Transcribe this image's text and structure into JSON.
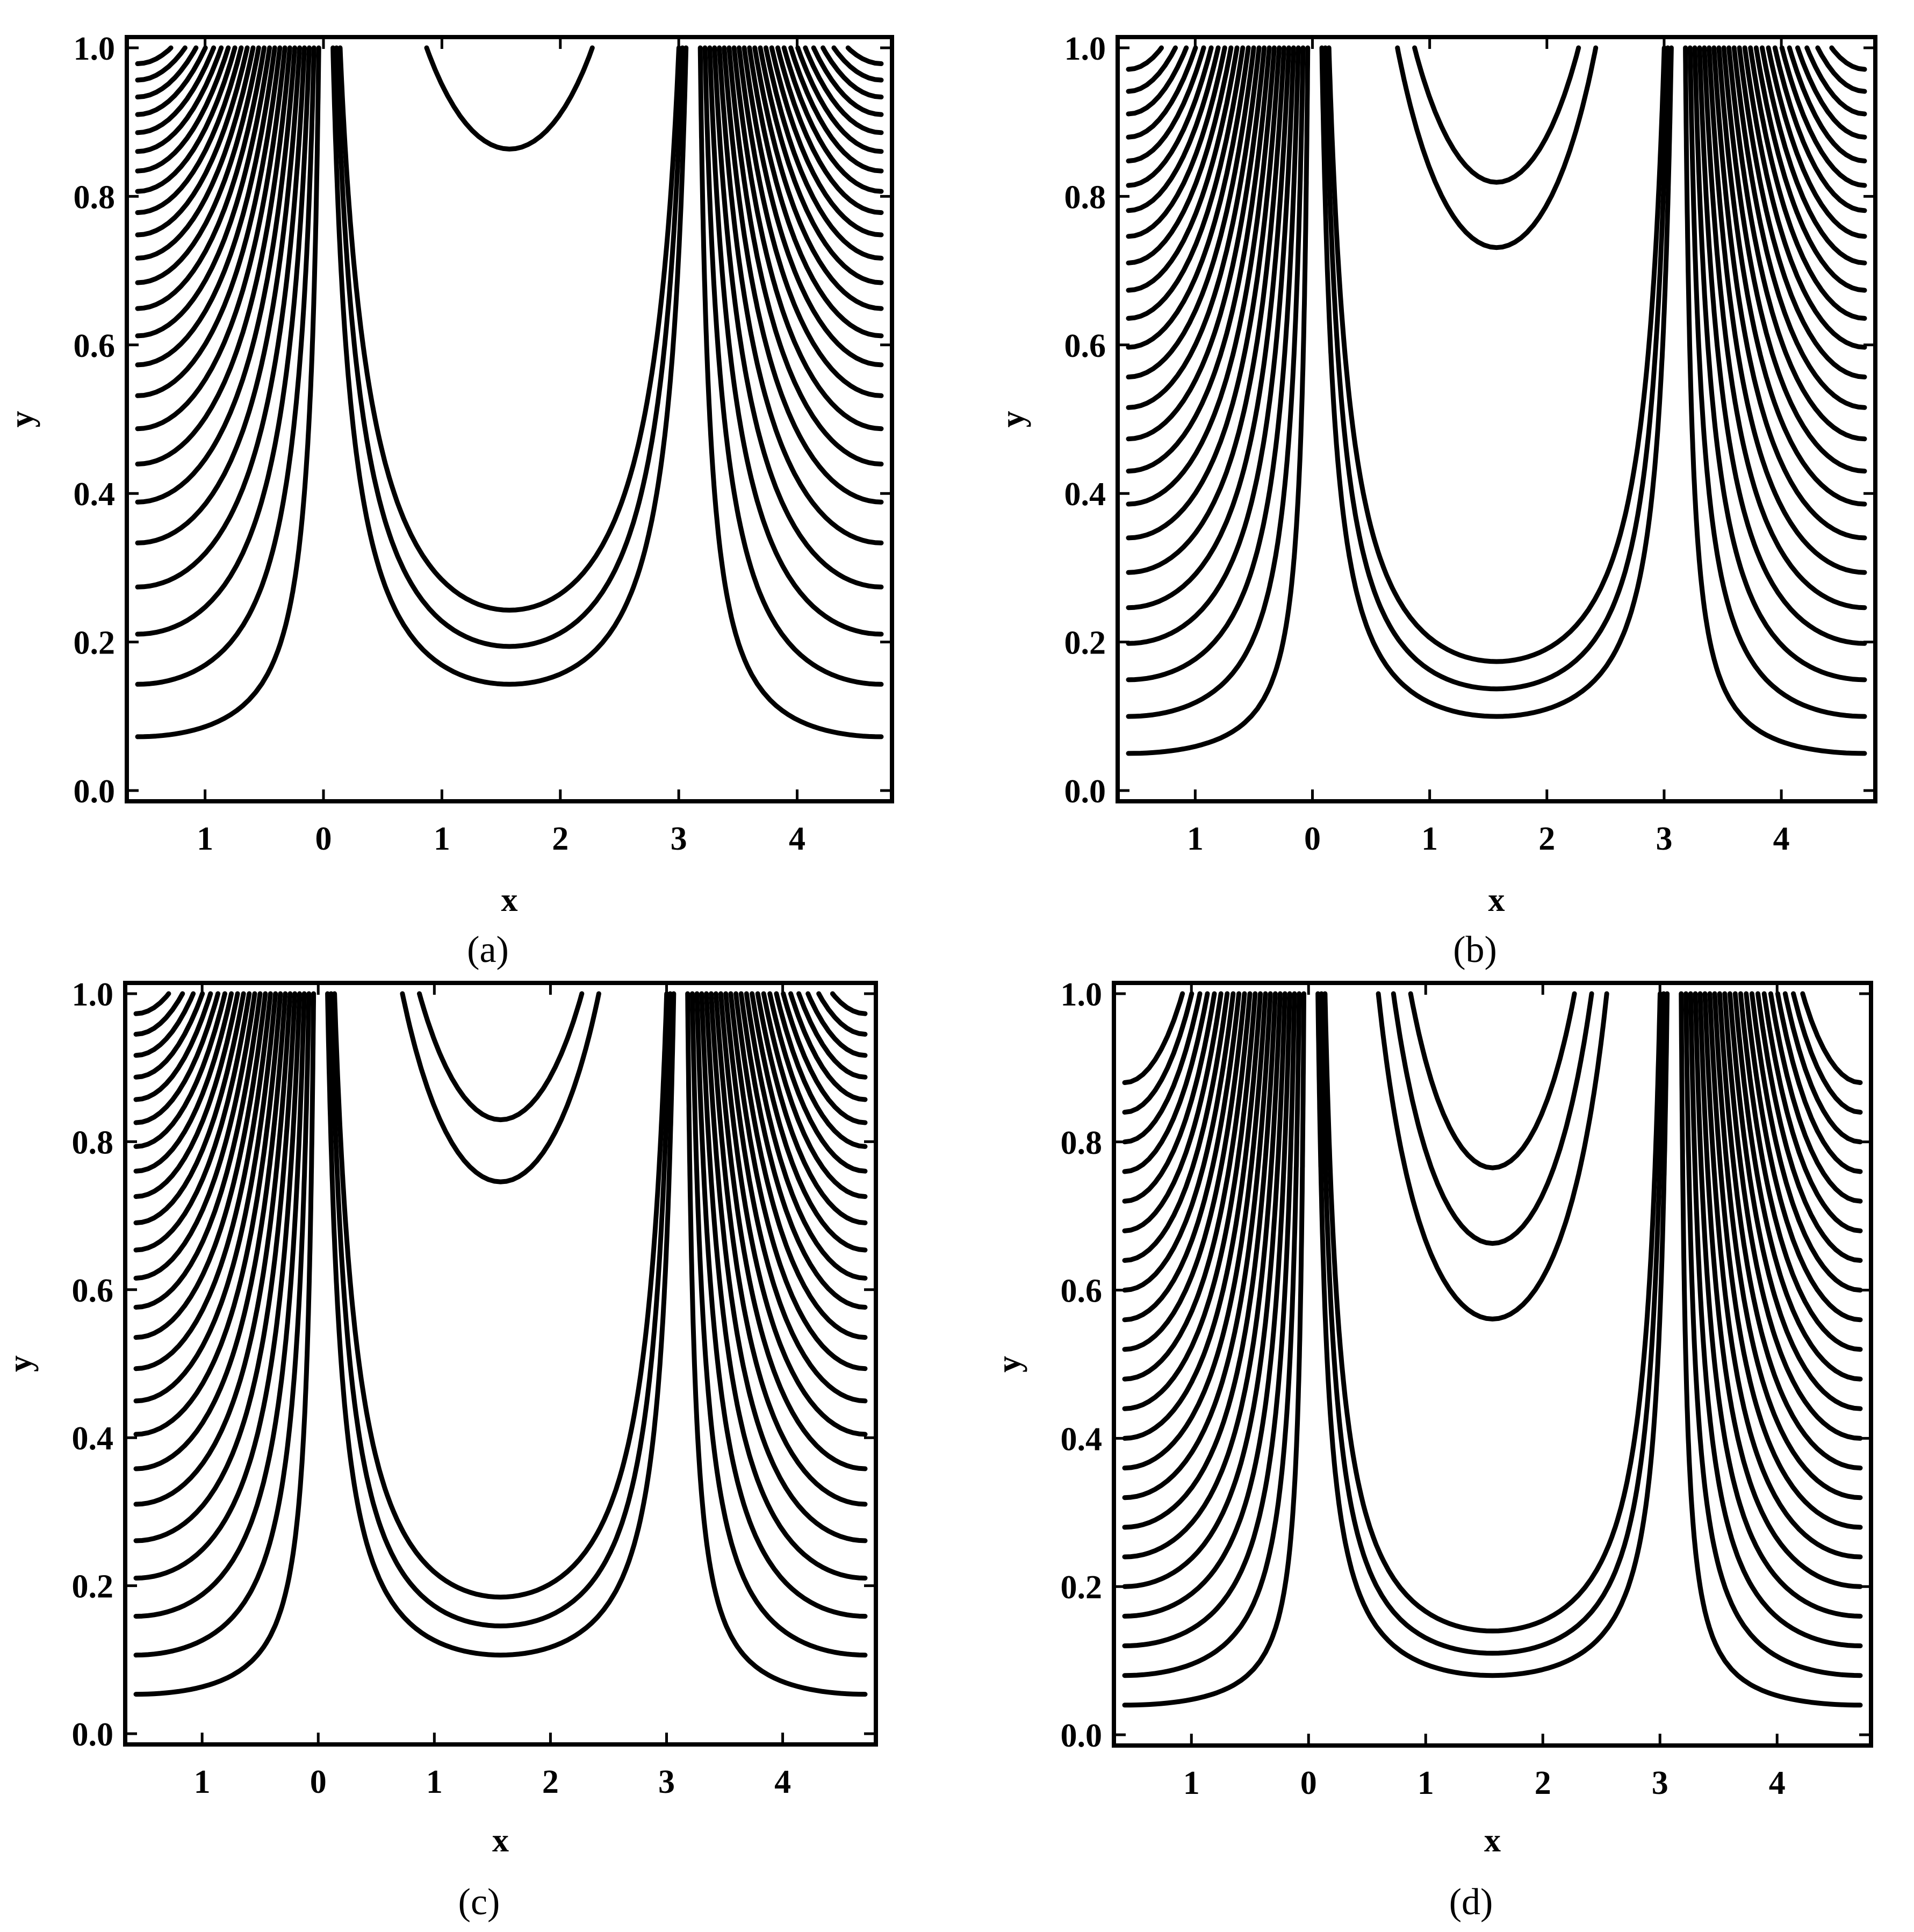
{
  "figure": {
    "panels": [
      {
        "caption": "(a)"
      },
      {
        "caption": "(b)"
      },
      {
        "caption": "(c)"
      },
      {
        "caption": "(d)"
      }
    ]
  },
  "chart_data": [
    {
      "type": "contour",
      "panel": "(a)",
      "xlabel": "x",
      "ylabel": "y",
      "xticks": [
        "1",
        "0",
        "1",
        "2",
        "3",
        "4"
      ],
      "xtick_values": [
        -1,
        0,
        1,
        2,
        3,
        4
      ],
      "yticks": [
        "0.0",
        "0.2",
        "0.4",
        "0.6",
        "0.8",
        "1.0"
      ],
      "ytick_values": [
        0.0,
        0.2,
        0.4,
        0.6,
        0.8,
        1.0
      ],
      "xlim": [
        -1.57,
        4.71
      ],
      "ylim": [
        0,
        1
      ],
      "color": "#000000",
      "closed_loop_min_y": [
        0.12
      ],
      "nested_loop_count": 1,
      "open_contour_count": 28
    },
    {
      "type": "contour",
      "panel": "(b)",
      "xlabel": "x",
      "ylabel": "y",
      "xticks": [
        "1",
        "0",
        "1",
        "2",
        "3",
        "4"
      ],
      "xtick_values": [
        -1,
        0,
        1,
        2,
        3,
        4
      ],
      "yticks": [
        "0.0",
        "0.2",
        "0.4",
        "0.6",
        "0.8",
        "1.0"
      ],
      "ytick_values": [
        0.0,
        0.2,
        0.4,
        0.6,
        0.8,
        1.0
      ],
      "xlim": [
        -1.57,
        4.71
      ],
      "ylim": [
        0,
        1
      ],
      "color": "#000000",
      "closed_loop_min_y": [
        0.2,
        0.1
      ],
      "nested_loop_count": 2,
      "open_contour_count": 28
    },
    {
      "type": "contour",
      "panel": "(c)",
      "xlabel": "x",
      "ylabel": "y",
      "xticks": [
        "1",
        "0",
        "1",
        "2",
        "3",
        "4"
      ],
      "xtick_values": [
        -1,
        0,
        1,
        2,
        3,
        4
      ],
      "yticks": [
        "0.0",
        "0.2",
        "0.4",
        "0.6",
        "0.8",
        "1.0"
      ],
      "ytick_values": [
        0.0,
        0.2,
        0.4,
        0.6,
        0.8,
        1.0
      ],
      "xlim": [
        -1.57,
        4.71
      ],
      "ylim": [
        0,
        1
      ],
      "color": "#000000",
      "closed_loop_min_y": [
        0.22,
        0.1
      ],
      "nested_loop_count": 2,
      "open_contour_count": 24
    },
    {
      "type": "contour",
      "panel": "(d)",
      "xlabel": "x",
      "ylabel": "y",
      "xticks": [
        "1",
        "0",
        "1",
        "2",
        "3",
        "4"
      ],
      "xtick_values": [
        -1,
        0,
        1,
        2,
        3,
        4
      ],
      "yticks": [
        "0.0",
        "0.2",
        "0.4",
        "0.6",
        "0.8",
        "1.0"
      ],
      "ytick_values": [
        0.0,
        0.2,
        0.4,
        0.6,
        0.8,
        1.0
      ],
      "xlim": [
        -1.57,
        4.71
      ],
      "ylim": [
        0,
        1
      ],
      "color": "#000000",
      "closed_loop_min_y": [
        0.25,
        0.16,
        0.08
      ],
      "nested_loop_count": 3,
      "open_contour_count": 22
    }
  ]
}
